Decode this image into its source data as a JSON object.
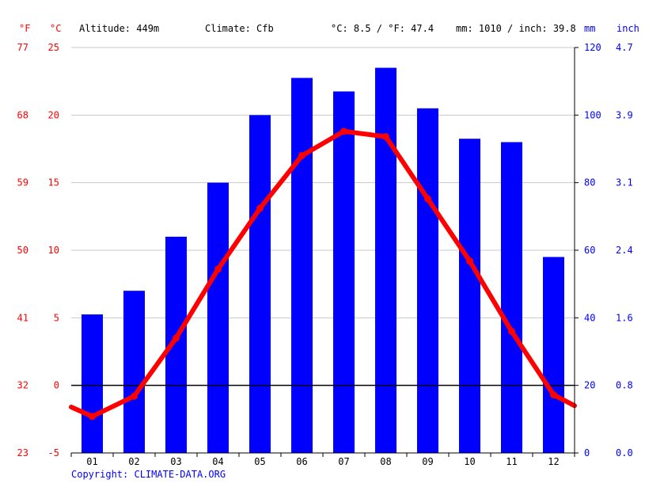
{
  "header": {
    "unit_f": "°F",
    "unit_c": "°C",
    "altitude": "Altitude: 449m",
    "climate": "Climate: Cfb",
    "avg_temp": "°C: 8.5 / °F: 47.4",
    "precip_total": "mm: 1010 / inch: 39.8",
    "unit_mm": "mm",
    "unit_inch": "inch"
  },
  "footer": {
    "copyright": "Copyright: CLIMATE-DATA.ORG"
  },
  "colors": {
    "temp_line": "#ff0000",
    "precip_bar": "#0000ff",
    "grid": "#c8c8c8",
    "zero_line": "#000000",
    "text_left": "#ff0000",
    "text_right": "#0000ff"
  },
  "chart_data": {
    "type": "bar",
    "combo": "bar+line",
    "categories": [
      "01",
      "02",
      "03",
      "04",
      "05",
      "06",
      "07",
      "08",
      "09",
      "10",
      "11",
      "12"
    ],
    "series": [
      {
        "type": "bar",
        "axis": "right",
        "unit": "mm",
        "values": [
          41,
          48,
          64,
          80,
          100,
          111,
          107,
          114,
          102,
          93,
          92,
          58
        ]
      },
      {
        "type": "line",
        "axis": "left",
        "unit": "°C",
        "values": [
          -2.3,
          -0.8,
          3.5,
          8.6,
          13.1,
          17.0,
          18.8,
          18.4,
          13.8,
          9.2,
          4.0,
          -0.7
        ],
        "edge_start": -1.6,
        "edge_end": -1.5
      }
    ],
    "left_axis": {
      "c_ticks": [
        25,
        20,
        15,
        10,
        5,
        0,
        -5
      ],
      "f_ticks": [
        77,
        68,
        59,
        50,
        41,
        32,
        23
      ],
      "ylim": [
        -5,
        25
      ]
    },
    "right_axis": {
      "mm_ticks": [
        120,
        100,
        80,
        60,
        40,
        20,
        0
      ],
      "inch_ticks": [
        "4.7",
        "3.9",
        "3.1",
        "2.4",
        "1.6",
        "0.8",
        "0.0"
      ],
      "ylim": [
        0,
        120
      ]
    },
    "grid": true,
    "zero_line_at_c": 0
  }
}
